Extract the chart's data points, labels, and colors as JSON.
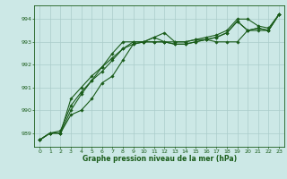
{
  "xlabel": "Graphe pression niveau de la mer (hPa)",
  "background_color": "#cce8e6",
  "grid_color": "#aaccca",
  "line_color": "#1a5c1a",
  "xlim": [
    -0.5,
    23.5
  ],
  "ylim": [
    988.4,
    994.6
  ],
  "yticks": [
    989,
    990,
    991,
    992,
    993,
    994
  ],
  "xticks": [
    0,
    1,
    2,
    3,
    4,
    5,
    6,
    7,
    8,
    9,
    10,
    11,
    12,
    13,
    14,
    15,
    16,
    17,
    18,
    19,
    20,
    21,
    22,
    23
  ],
  "series": [
    [
      988.7,
      989.0,
      989.0,
      989.8,
      990.0,
      990.5,
      991.2,
      991.5,
      992.2,
      992.9,
      993.0,
      993.2,
      993.4,
      993.0,
      993.0,
      993.1,
      993.1,
      993.0,
      993.0,
      993.0,
      993.5,
      993.5,
      993.5,
      994.2
    ],
    [
      988.7,
      989.0,
      989.1,
      990.2,
      990.8,
      991.3,
      991.7,
      992.2,
      992.7,
      992.9,
      993.0,
      993.0,
      993.0,
      992.9,
      992.9,
      993.0,
      993.1,
      993.2,
      993.4,
      993.9,
      993.5,
      993.6,
      993.5,
      994.2
    ],
    [
      988.7,
      989.0,
      989.0,
      990.5,
      991.0,
      991.5,
      991.9,
      992.3,
      992.7,
      993.0,
      993.0,
      993.0,
      993.0,
      993.0,
      993.0,
      993.1,
      993.2,
      993.3,
      993.5,
      994.0,
      994.0,
      993.7,
      993.6,
      994.2
    ],
    [
      988.7,
      989.0,
      989.0,
      990.0,
      990.7,
      991.3,
      991.9,
      992.5,
      993.0,
      993.0,
      993.0,
      993.2,
      993.0,
      992.9,
      992.9,
      993.0,
      993.1,
      993.2,
      993.4,
      993.9,
      993.5,
      993.6,
      993.5,
      994.2
    ]
  ],
  "fig_width": 3.2,
  "fig_height": 2.0,
  "dpi": 100
}
